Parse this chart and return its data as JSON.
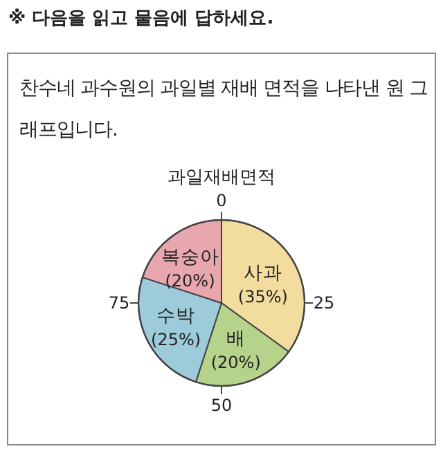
{
  "chart_data": {
    "type": "pie",
    "title": "과일재배면적",
    "annotations": [
      "※ 다음을 읽고 물음에 답하세요.",
      "찬수네 과수원의 과일별 재배 면적을 나타낸 원 그래프입니다.",
      "0",
      "25",
      "50",
      "75"
    ],
    "categories": [
      "사과",
      "배",
      "수박",
      "복숭아"
    ],
    "values": [
      35,
      20,
      25,
      20
    ],
    "value_labels": [
      "(35%)",
      "(20%)",
      "(25%)",
      "(20%)"
    ],
    "colors": [
      "#f2dc9e",
      "#b6d38c",
      "#9dcbd9",
      "#e8a6ae"
    ]
  }
}
